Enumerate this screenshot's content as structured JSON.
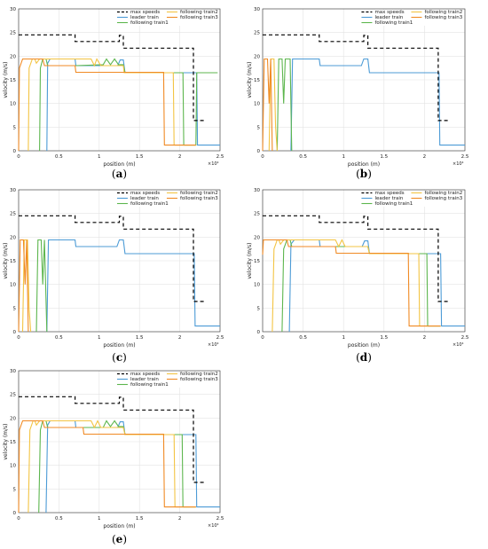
{
  "chart_data": [
    {
      "type": "line",
      "caption": "(a)",
      "xlabel": "position (m)",
      "ylabel": "velocity (m/s)",
      "xlim": [
        0,
        25000
      ],
      "ylim": [
        0,
        30
      ],
      "xexp": "×10⁴",
      "xticks": [
        "0",
        "0.5",
        "1",
        "1.5",
        "2",
        "2.5"
      ],
      "yticks": [
        "0",
        "5",
        "10",
        "15",
        "20",
        "25",
        "30"
      ],
      "grid": true,
      "legend": "top-right",
      "series": [
        {
          "name": "max speeds",
          "color": "#000000",
          "dash": true,
          "x": [
            0,
            7000,
            7000,
            12500,
            12500,
            13000,
            13000,
            21700,
            21700,
            23000
          ],
          "y": [
            24.5,
            24.5,
            23.1,
            23.1,
            24.4,
            24.4,
            21.7,
            21.7,
            6.4,
            6.4
          ]
        },
        {
          "name": "leader train",
          "color": "#4c9bd6",
          "x": [
            3500,
            3600,
            3900,
            7000,
            7100,
            12300,
            12600,
            13000,
            13200,
            22100,
            22200,
            25000
          ],
          "y": [
            0,
            18.5,
            19.4,
            19.4,
            18.0,
            18.0,
            19.2,
            19.2,
            16.5,
            16.5,
            1.2,
            1.2
          ]
        },
        {
          "name": "following train1",
          "color": "#5db64e",
          "x": [
            2600,
            2700,
            3000,
            3400,
            3600,
            4000,
            7000,
            7100,
            10500,
            10900,
            11400,
            11900,
            12400,
            13000,
            13200,
            20400,
            20500,
            22000,
            22100,
            24700
          ],
          "y": [
            0,
            17.5,
            19.4,
            19.4,
            18.0,
            18.0,
            18.0,
            18.0,
            18.2,
            19.4,
            18.2,
            19.4,
            18.2,
            18.2,
            16.5,
            16.5,
            1.2,
            1.2,
            16.5,
            16.5
          ]
        },
        {
          "name": "following train2",
          "color": "#f3c443",
          "x": [
            1200,
            1300,
            1700,
            2000,
            2200,
            2600,
            9000,
            9400,
            9700,
            10200,
            13000,
            13100,
            19200,
            19300,
            22000
          ],
          "y": [
            0,
            17.5,
            19.4,
            19.4,
            18.5,
            19.4,
            19.4,
            18.0,
            19.4,
            18.0,
            18.0,
            16.5,
            16.5,
            1.2,
            1.2
          ]
        },
        {
          "name": "following train3",
          "color": "#f08a24",
          "x": [
            0,
            100,
            500,
            3000,
            3200,
            7000,
            7100,
            12000,
            12100,
            18000,
            18100,
            22000
          ],
          "y": [
            0,
            17.5,
            19.4,
            19.4,
            18.0,
            18.0,
            16.6,
            16.6,
            16.6,
            16.6,
            1.2,
            1.2
          ]
        }
      ]
    },
    {
      "type": "line",
      "caption": "(b)",
      "xlabel": "position (m)",
      "ylabel": "velocity (m/s)",
      "xlim": [
        0,
        25000
      ],
      "ylim": [
        0,
        30
      ],
      "xexp": "×10⁴",
      "xticks": [
        "0",
        "0.5",
        "1",
        "1.5",
        "2",
        "2.5"
      ],
      "yticks": [
        "0",
        "5",
        "10",
        "15",
        "20",
        "25",
        "30"
      ],
      "grid": true,
      "legend": "top-right",
      "series": [
        {
          "name": "max speeds",
          "color": "#000000",
          "dash": true,
          "x": [
            0,
            7000,
            7000,
            12500,
            12500,
            13000,
            13000,
            21700,
            21700,
            23000
          ],
          "y": [
            24.5,
            24.5,
            23.1,
            23.1,
            24.4,
            24.4,
            21.7,
            21.7,
            6.4,
            6.4
          ]
        },
        {
          "name": "leader train",
          "color": "#4c9bd6",
          "x": [
            3500,
            3700,
            7000,
            7100,
            12200,
            12500,
            13000,
            13200,
            21800,
            21900,
            25000
          ],
          "y": [
            0,
            19.4,
            19.4,
            18.0,
            18.0,
            19.4,
            19.4,
            16.5,
            16.5,
            1.2,
            1.2
          ]
        },
        {
          "name": "following train1",
          "color": "#5db64e",
          "x": [
            1800,
            2000,
            2400,
            2600,
            2800,
            3100,
            3400,
            3600
          ],
          "y": [
            0,
            19.4,
            19.4,
            10.0,
            19.4,
            19.4,
            19.4,
            0
          ]
        },
        {
          "name": "following train2",
          "color": "#f3c443",
          "x": [
            800,
            1000,
            1400,
            1600,
            1800
          ],
          "y": [
            0,
            19.4,
            19.4,
            5.0,
            0
          ]
        },
        {
          "name": "following train3",
          "color": "#f08a24",
          "x": [
            0,
            200,
            600,
            800,
            1000,
            1200
          ],
          "y": [
            0,
            19.4,
            19.4,
            10.0,
            19.4,
            0
          ]
        }
      ]
    },
    {
      "type": "line",
      "caption": "(c)",
      "xlabel": "position (m)",
      "ylabel": "velocity (m/s)",
      "xlim": [
        0,
        25000
      ],
      "ylim": [
        0,
        30
      ],
      "xexp": "×10⁴",
      "xticks": [
        "0",
        "0.5",
        "1",
        "1.5",
        "2",
        "2.5"
      ],
      "yticks": [
        "0",
        "5",
        "10",
        "15",
        "20",
        "25",
        "30"
      ],
      "grid": true,
      "legend": "top-right",
      "series": [
        {
          "name": "max speeds",
          "color": "#000000",
          "dash": true,
          "x": [
            0,
            7000,
            7000,
            12500,
            12500,
            13000,
            13000,
            21700,
            21700,
            23000
          ],
          "y": [
            24.5,
            24.5,
            23.1,
            23.1,
            24.4,
            24.4,
            21.7,
            21.7,
            6.4,
            6.4
          ]
        },
        {
          "name": "leader train",
          "color": "#4c9bd6",
          "x": [
            3500,
            3700,
            7000,
            7100,
            12200,
            12500,
            13000,
            13200,
            21800,
            21900,
            25000
          ],
          "y": [
            0,
            19.4,
            19.4,
            18.0,
            18.0,
            19.4,
            19.4,
            16.5,
            16.5,
            1.2,
            1.2
          ]
        },
        {
          "name": "following train1",
          "color": "#5db64e",
          "x": [
            2200,
            2400,
            2800,
            3000,
            3200,
            3500
          ],
          "y": [
            0,
            19.4,
            19.4,
            10.0,
            19.4,
            0
          ]
        },
        {
          "name": "following train2",
          "color": "#f3c443",
          "x": [
            500,
            700,
            1100,
            1300,
            1500
          ],
          "y": [
            0,
            19.4,
            19.4,
            5.0,
            0
          ]
        },
        {
          "name": "following train3",
          "color": "#f08a24",
          "x": [
            0,
            200,
            600,
            800,
            1000,
            1200
          ],
          "y": [
            0,
            19.4,
            19.4,
            10.0,
            19.4,
            0
          ]
        }
      ]
    },
    {
      "type": "line",
      "caption": "(d)",
      "xlabel": "position (m)",
      "ylabel": "velocity (m/s)",
      "xlim": [
        0,
        25000
      ],
      "ylim": [
        0,
        30
      ],
      "xexp": "×10⁴",
      "xticks": [
        "0",
        "0.5",
        "1",
        "1.5",
        "2",
        "2.5"
      ],
      "yticks": [
        "0",
        "5",
        "10",
        "15",
        "20",
        "25",
        "30"
      ],
      "grid": true,
      "legend": "top-right",
      "series": [
        {
          "name": "max speeds",
          "color": "#000000",
          "dash": true,
          "x": [
            0,
            7000,
            7000,
            12500,
            12500,
            13000,
            13000,
            21700,
            21700,
            23000
          ],
          "y": [
            24.5,
            24.5,
            23.1,
            23.1,
            24.4,
            24.4,
            21.7,
            21.7,
            6.4,
            6.4
          ]
        },
        {
          "name": "leader train",
          "color": "#4c9bd6",
          "x": [
            3300,
            3500,
            3900,
            7000,
            7100,
            12300,
            12600,
            13000,
            13200,
            22000,
            22100,
            25000
          ],
          "y": [
            0,
            18.5,
            19.4,
            19.4,
            18.0,
            18.0,
            19.2,
            19.2,
            16.5,
            16.5,
            1.2,
            1.2
          ]
        },
        {
          "name": "following train1",
          "color": "#5db64e",
          "x": [
            2400,
            2600,
            3000,
            3400,
            3600,
            10000,
            10300,
            13000,
            13200,
            20300,
            20400,
            22000
          ],
          "y": [
            0,
            17.5,
            19.4,
            19.4,
            18.0,
            18.0,
            18.0,
            18.0,
            16.5,
            16.5,
            1.2,
            1.2
          ]
        },
        {
          "name": "following train2",
          "color": "#f3c443",
          "x": [
            1200,
            1400,
            1800,
            2000,
            2200,
            2600,
            9000,
            9400,
            9800,
            10200,
            13000,
            13200,
            19300,
            19400,
            22000
          ],
          "y": [
            0,
            17.5,
            19.4,
            19.4,
            18.5,
            19.4,
            19.4,
            18.0,
            19.4,
            18.0,
            18.0,
            16.5,
            16.5,
            1.2,
            1.2
          ]
        },
        {
          "name": "following train3",
          "color": "#f08a24",
          "x": [
            0,
            100,
            500,
            3000,
            3200,
            9000,
            9100,
            12000,
            12100,
            18000,
            18100,
            22000
          ],
          "y": [
            16.3,
            19.4,
            19.4,
            19.4,
            18.0,
            18.0,
            16.6,
            16.6,
            16.6,
            16.6,
            1.2,
            1.2
          ]
        }
      ]
    },
    {
      "type": "line",
      "caption": "(e)",
      "xlabel": "position (m)",
      "ylabel": "velocity (m/s)",
      "xlim": [
        0,
        25000
      ],
      "ylim": [
        0,
        30
      ],
      "xexp": "×10⁴",
      "xticks": [
        "0",
        "0.5",
        "1",
        "1.5",
        "2",
        "2.5"
      ],
      "yticks": [
        "0",
        "5",
        "10",
        "15",
        "20",
        "25",
        "30"
      ],
      "grid": true,
      "legend": "top-right",
      "series": [
        {
          "name": "max speeds",
          "color": "#000000",
          "dash": true,
          "x": [
            0,
            7000,
            7000,
            12500,
            12500,
            13000,
            13000,
            21700,
            21700,
            23000
          ],
          "y": [
            24.5,
            24.5,
            23.1,
            23.1,
            24.4,
            24.4,
            21.7,
            21.7,
            6.4,
            6.4
          ]
        },
        {
          "name": "leader train",
          "color": "#4c9bd6",
          "x": [
            3400,
            3600,
            3900,
            7000,
            7100,
            12300,
            12600,
            13000,
            13200,
            22000,
            22100,
            25000
          ],
          "y": [
            0,
            18.5,
            19.4,
            19.4,
            18.0,
            18.0,
            19.2,
            19.2,
            16.5,
            16.5,
            1.2,
            1.2
          ]
        },
        {
          "name": "following train1",
          "color": "#5db64e",
          "x": [
            2500,
            2700,
            3000,
            3400,
            3600,
            10500,
            10900,
            11400,
            11900,
            12400,
            13000,
            13200,
            20300,
            20400,
            22000
          ],
          "y": [
            0,
            17.5,
            19.4,
            19.4,
            18.0,
            18.0,
            19.4,
            18.2,
            19.4,
            18.2,
            18.2,
            16.5,
            16.5,
            1.2,
            1.2
          ]
        },
        {
          "name": "following train2",
          "color": "#f3c443",
          "x": [
            1200,
            1400,
            1800,
            2000,
            2200,
            2600,
            9000,
            9400,
            9800,
            10200,
            13000,
            13200,
            19300,
            19400,
            22000
          ],
          "y": [
            0,
            17.5,
            19.4,
            19.4,
            18.5,
            19.4,
            19.4,
            18.0,
            19.4,
            18.0,
            18.0,
            16.5,
            16.5,
            1.2,
            1.2
          ]
        },
        {
          "name": "following train3",
          "color": "#f08a24",
          "x": [
            0,
            100,
            500,
            3000,
            3200,
            8000,
            8100,
            12000,
            12100,
            18000,
            18100,
            22000
          ],
          "y": [
            0,
            17.5,
            19.4,
            19.4,
            18.0,
            18.0,
            16.6,
            16.6,
            16.6,
            16.6,
            1.2,
            1.2
          ]
        }
      ]
    }
  ]
}
